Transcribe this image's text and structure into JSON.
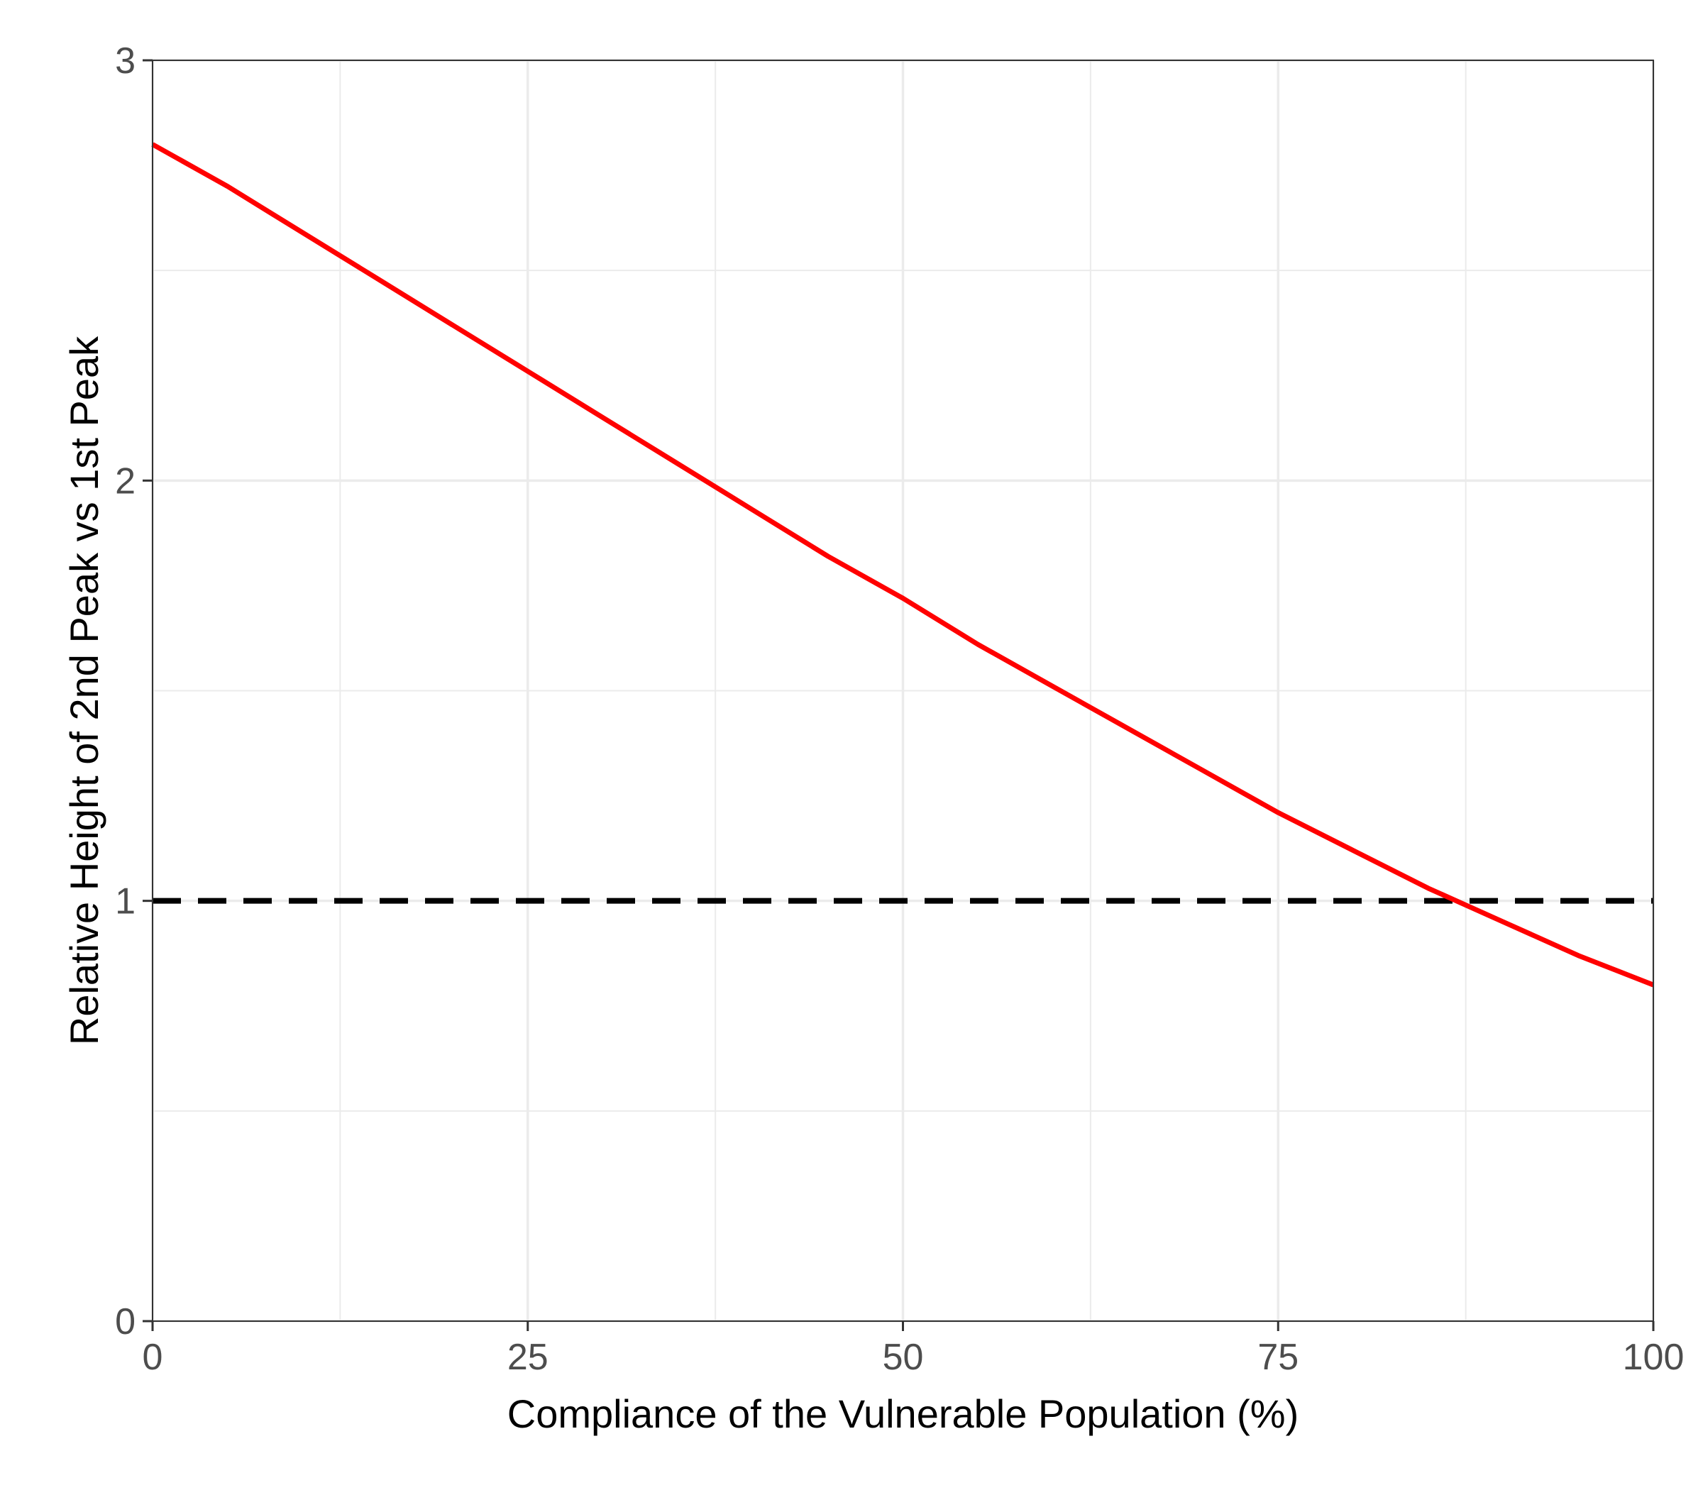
{
  "chart_data": {
    "type": "line",
    "title": "",
    "xlabel": "Compliance of the Vulnerable Population (%)",
    "ylabel": "Relative Height of 2nd Peak vs 1st Peak",
    "xlim": [
      0,
      100
    ],
    "ylim": [
      0,
      3
    ],
    "x_ticks": [
      0,
      25,
      50,
      75,
      100
    ],
    "y_ticks": [
      0,
      1,
      2,
      3
    ],
    "x_minor_gridlines": [
      12.5,
      37.5,
      62.5,
      87.5
    ],
    "y_minor_gridlines": [
      0.5,
      1.5,
      2.5
    ],
    "grid": true,
    "legend": "none",
    "series": [
      {
        "color": "#ff0000",
        "line_style": "solid",
        "x": [
          0,
          5,
          10,
          15,
          20,
          25,
          30,
          35,
          40,
          45,
          50,
          55,
          60,
          65,
          70,
          72.5,
          75,
          80,
          85,
          90,
          95,
          100
        ],
        "y": [
          2.8,
          2.7,
          2.59,
          2.48,
          2.37,
          2.26,
          2.15,
          2.04,
          1.93,
          1.82,
          1.72,
          1.61,
          1.51,
          1.41,
          1.31,
          1.26,
          1.21,
          1.12,
          1.03,
          0.95,
          0.87,
          0.8
        ]
      }
    ],
    "reference_lines": [
      {
        "axis": "y",
        "value": 1,
        "color": "#000000",
        "line_style": "dashed"
      }
    ]
  }
}
